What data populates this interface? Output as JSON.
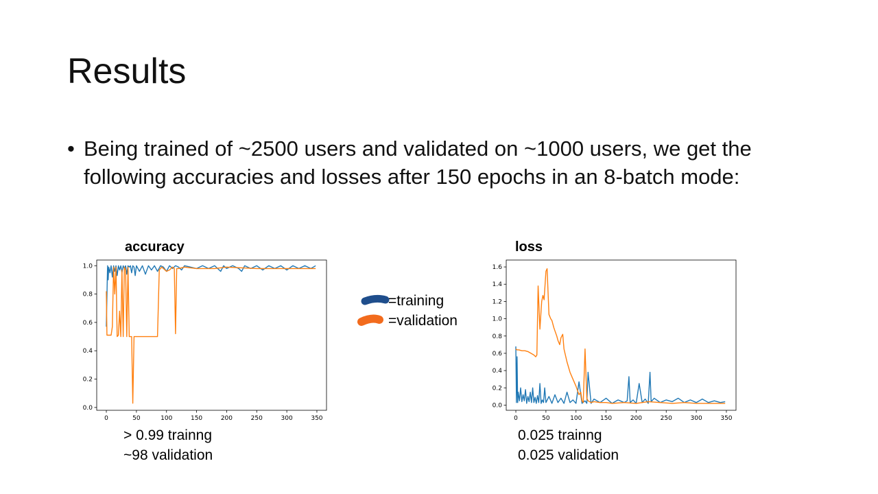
{
  "slide": {
    "title": "Results",
    "bullet": "Being trained of ~2500 users and validated on ~1000 users, we get the following accuracies and losses after 150 epochs in an 8-batch mode:"
  },
  "legend": {
    "training": "=training",
    "validation": "=validation"
  },
  "notes": {
    "accuracy_training": "> 0.99 trainng",
    "accuracy_validation": "~98 validation",
    "loss_training": "0.025 trainng",
    "loss_validation": "0.025 validation"
  },
  "colors": {
    "training": "#1f77b4",
    "validation": "#ff7f0e",
    "legend_training": "#1f4e8c",
    "legend_validation": "#f26b1d"
  },
  "chart_data": [
    {
      "type": "line",
      "title": "accuracy",
      "xlim": [
        -16,
        366
      ],
      "ylim": [
        -0.02,
        1.04
      ],
      "xticks": [
        0,
        50,
        100,
        150,
        200,
        250,
        300,
        350
      ],
      "yticks": [
        0.0,
        0.2,
        0.4,
        0.6,
        0.8,
        1.0
      ],
      "series": [
        {
          "name": "training",
          "x": [
            0,
            2,
            3,
            4,
            6,
            8,
            10,
            12,
            14,
            16,
            18,
            20,
            22,
            24,
            26,
            28,
            30,
            32,
            34,
            36,
            38,
            40,
            42,
            44,
            46,
            48,
            50,
            55,
            60,
            65,
            70,
            75,
            80,
            85,
            90,
            95,
            100,
            105,
            110,
            115,
            120,
            125,
            130,
            140,
            150,
            160,
            170,
            180,
            190,
            195,
            200,
            210,
            220,
            225,
            230,
            240,
            250,
            260,
            270,
            280,
            290,
            300,
            310,
            320,
            330,
            340,
            348
          ],
          "y": [
            0.57,
            1.0,
            0.9,
            0.99,
            0.95,
            1.0,
            0.92,
            1.0,
            0.96,
            1.0,
            0.93,
            1.0,
            0.97,
            1.0,
            0.95,
            1.0,
            0.98,
            1.0,
            0.94,
            1.0,
            0.99,
            1.0,
            0.95,
            1.0,
            0.99,
            0.93,
            1.0,
            0.96,
            1.0,
            0.94,
            1.0,
            0.97,
            1.0,
            0.96,
            1.0,
            0.99,
            0.96,
            1.0,
            0.98,
            1.0,
            0.99,
            0.97,
            1.0,
            0.99,
            0.98,
            1.0,
            0.98,
            1.0,
            0.96,
            1.0,
            0.98,
            1.0,
            0.98,
            0.96,
            1.0,
            0.98,
            1.0,
            0.97,
            1.0,
            0.98,
            1.0,
            0.97,
            1.0,
            0.98,
            1.0,
            0.98,
            1.0
          ]
        },
        {
          "name": "validation",
          "x": [
            0,
            1,
            3,
            5,
            8,
            10,
            12,
            14,
            16,
            18,
            20,
            22,
            24,
            26,
            28,
            30,
            32,
            34,
            36,
            38,
            40,
            42,
            44,
            46,
            48,
            50,
            55,
            60,
            65,
            70,
            75,
            80,
            85,
            88,
            92,
            95,
            100,
            105,
            110,
            113,
            115,
            117,
            120,
            130,
            150,
            180,
            200,
            250,
            300,
            348
          ],
          "y": [
            0.82,
            0.51,
            0.51,
            0.51,
            0.51,
            0.57,
            0.99,
            0.8,
            0.99,
            0.5,
            0.51,
            0.68,
            0.5,
            0.97,
            0.5,
            0.99,
            0.97,
            0.5,
            0.99,
            0.5,
            0.5,
            0.5,
            0.03,
            0.5,
            0.5,
            0.5,
            0.5,
            0.5,
            0.5,
            0.5,
            0.5,
            0.5,
            0.5,
            0.97,
            0.99,
            0.98,
            0.96,
            0.97,
            0.99,
            0.98,
            0.52,
            0.98,
            0.98,
            0.99,
            0.98,
            0.98,
            0.99,
            0.98,
            0.98,
            0.98
          ]
        }
      ]
    },
    {
      "type": "line",
      "title": "loss",
      "xlim": [
        -16,
        366
      ],
      "ylim": [
        -0.06,
        1.68
      ],
      "xticks": [
        0,
        50,
        100,
        150,
        200,
        250,
        300,
        350
      ],
      "yticks": [
        0.0,
        0.2,
        0.4,
        0.6,
        0.8,
        1.0,
        1.2,
        1.4,
        1.6
      ],
      "series": [
        {
          "name": "training",
          "x": [
            0,
            1,
            2,
            3,
            4,
            6,
            8,
            10,
            12,
            14,
            16,
            18,
            20,
            22,
            24,
            26,
            28,
            30,
            32,
            34,
            36,
            38,
            40,
            42,
            44,
            46,
            48,
            50,
            55,
            60,
            65,
            70,
            75,
            80,
            85,
            90,
            95,
            100,
            105,
            110,
            115,
            118,
            120,
            125,
            130,
            140,
            150,
            160,
            170,
            180,
            185,
            188,
            190,
            195,
            200,
            205,
            210,
            215,
            220,
            223,
            225,
            230,
            240,
            250,
            260,
            270,
            280,
            290,
            300,
            310,
            320,
            330,
            340,
            348
          ],
          "y": [
            0.68,
            0.03,
            0.56,
            0.03,
            0.15,
            0.05,
            0.2,
            0.04,
            0.12,
            0.05,
            0.18,
            0.02,
            0.1,
            0.04,
            0.15,
            0.03,
            0.2,
            0.03,
            0.09,
            0.02,
            0.11,
            0.03,
            0.25,
            0.02,
            0.06,
            0.03,
            0.2,
            0.03,
            0.1,
            0.02,
            0.12,
            0.03,
            0.08,
            0.02,
            0.15,
            0.03,
            0.06,
            0.02,
            0.27,
            0.02,
            0.05,
            0.02,
            0.38,
            0.02,
            0.07,
            0.03,
            0.08,
            0.02,
            0.06,
            0.03,
            0.05,
            0.33,
            0.03,
            0.06,
            0.02,
            0.25,
            0.03,
            0.07,
            0.02,
            0.38,
            0.04,
            0.08,
            0.03,
            0.06,
            0.04,
            0.08,
            0.03,
            0.06,
            0.03,
            0.07,
            0.03,
            0.05,
            0.03,
            0.04
          ]
        },
        {
          "name": "validation",
          "x": [
            0,
            2,
            5,
            10,
            15,
            20,
            25,
            30,
            33,
            35,
            37,
            40,
            43,
            45,
            47,
            50,
            52,
            55,
            58,
            60,
            63,
            65,
            68,
            70,
            73,
            75,
            78,
            80,
            85,
            90,
            95,
            100,
            105,
            108,
            110,
            112,
            115,
            118,
            120,
            125,
            130,
            140,
            150,
            160,
            180,
            200,
            220,
            240,
            260,
            280,
            300,
            320,
            340,
            348
          ],
          "y": [
            0.65,
            0.64,
            0.64,
            0.63,
            0.63,
            0.62,
            0.6,
            0.58,
            0.56,
            0.58,
            1.38,
            0.88,
            1.2,
            1.27,
            1.22,
            1.55,
            1.58,
            1.05,
            1.0,
            0.98,
            0.9,
            0.86,
            0.8,
            0.75,
            0.7,
            0.78,
            0.82,
            0.65,
            0.5,
            0.38,
            0.3,
            0.22,
            0.12,
            0.15,
            0.05,
            0.03,
            0.65,
            0.08,
            0.05,
            0.03,
            0.04,
            0.03,
            0.03,
            0.02,
            0.03,
            0.02,
            0.04,
            0.03,
            0.02,
            0.03,
            0.02,
            0.02,
            0.02,
            0.02
          ]
        }
      ]
    }
  ]
}
